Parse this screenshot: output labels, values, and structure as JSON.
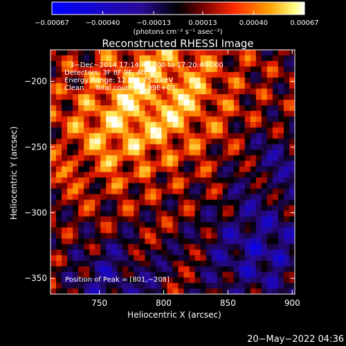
{
  "chart_data": {
    "type": "heatmap",
    "title": "Reconstructed RHESSI Image",
    "xlabel": "Heliocentric X (arcsec)",
    "ylabel": "Heliocentric Y (arcsec)",
    "xlim": [
      712,
      902
    ],
    "ylim": [
      -362,
      -176
    ],
    "x_ticks": [
      {
        "value": 750,
        "label": "750"
      },
      {
        "value": 800,
        "label": "800"
      },
      {
        "value": 850,
        "label": "850"
      },
      {
        "value": 900,
        "label": "900"
      }
    ],
    "y_ticks": [
      {
        "value": -200,
        "label": "−200"
      },
      {
        "value": -250,
        "label": "−250"
      },
      {
        "value": -300,
        "label": "−300"
      },
      {
        "value": -350,
        "label": "−350"
      }
    ],
    "colorbar": {
      "range": [
        -0.00067,
        0.00067
      ],
      "ticks": [
        {
          "value": -0.00067,
          "label": "−0.00067"
        },
        {
          "value": -0.0004,
          "label": "−0.00040"
        },
        {
          "value": -0.00013,
          "label": "−0.00013"
        },
        {
          "value": 0.00013,
          "label": "0.00013"
        },
        {
          "value": 0.0004,
          "label": "0.00040"
        },
        {
          "value": 0.00067,
          "label": "0.00067"
        }
      ],
      "unit_label": "(photons cm⁻² s⁻¹ asec⁻²)"
    },
    "annotations": [
      "3−Dec−2014 17:14:40.000 to 17:20:40.000",
      "Detectors: 3F 8F 9F, Att 0",
      "Energy Range: 12.0 − 25.0 keV",
      "Clean     Total counts: 2.99E+03"
    ],
    "peak_label": "Position of Peak = [801,−208]",
    "peak": [
      801,
      -208
    ],
    "timestamp": "20−May−2022 04:36"
  },
  "colors": {
    "background": "#000000",
    "foreground": "#ffffff",
    "colormap": [
      "#0000ff",
      "#2a0a9a",
      "#000000",
      "#7a0000",
      "#ff2a00",
      "#ffa000",
      "#ffff80",
      "#ffffff"
    ]
  }
}
